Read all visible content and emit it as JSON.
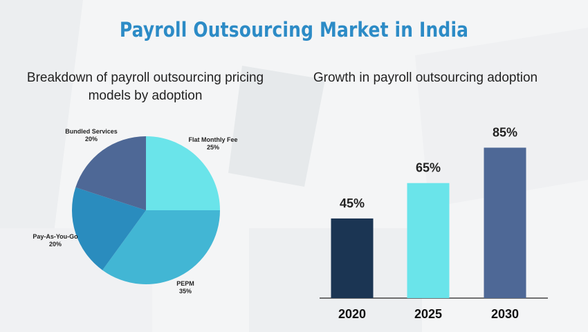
{
  "title": "Payroll Outsourcing Market in India",
  "chart_data": [
    {
      "type": "pie",
      "title": "Breakdown of payroll outsourcing pricing models by adoption",
      "slices": [
        {
          "label": "Flat Monthly Fee",
          "value": 25,
          "value_label": "25%",
          "color": "#6ae4ea"
        },
        {
          "label": "PEPM",
          "value": 35,
          "value_label": "35%",
          "color": "#42b6d4"
        },
        {
          "label": "Pay-As-You-Go",
          "value": 20,
          "value_label": "20%",
          "color": "#2a8cbe"
        },
        {
          "label": "Bundled Services",
          "value": 20,
          "value_label": "20%",
          "color": "#4e6896"
        }
      ]
    },
    {
      "type": "bar",
      "title": "Growth in payroll outsourcing adoption",
      "categories": [
        "2020",
        "2025",
        "2030"
      ],
      "values": [
        45,
        65,
        85
      ],
      "value_labels": [
        "45%",
        "65%",
        "85%"
      ],
      "colors": [
        "#1b3553",
        "#6ae4ea",
        "#4e6896"
      ],
      "ylim": [
        0,
        100
      ],
      "grid": false
    }
  ]
}
